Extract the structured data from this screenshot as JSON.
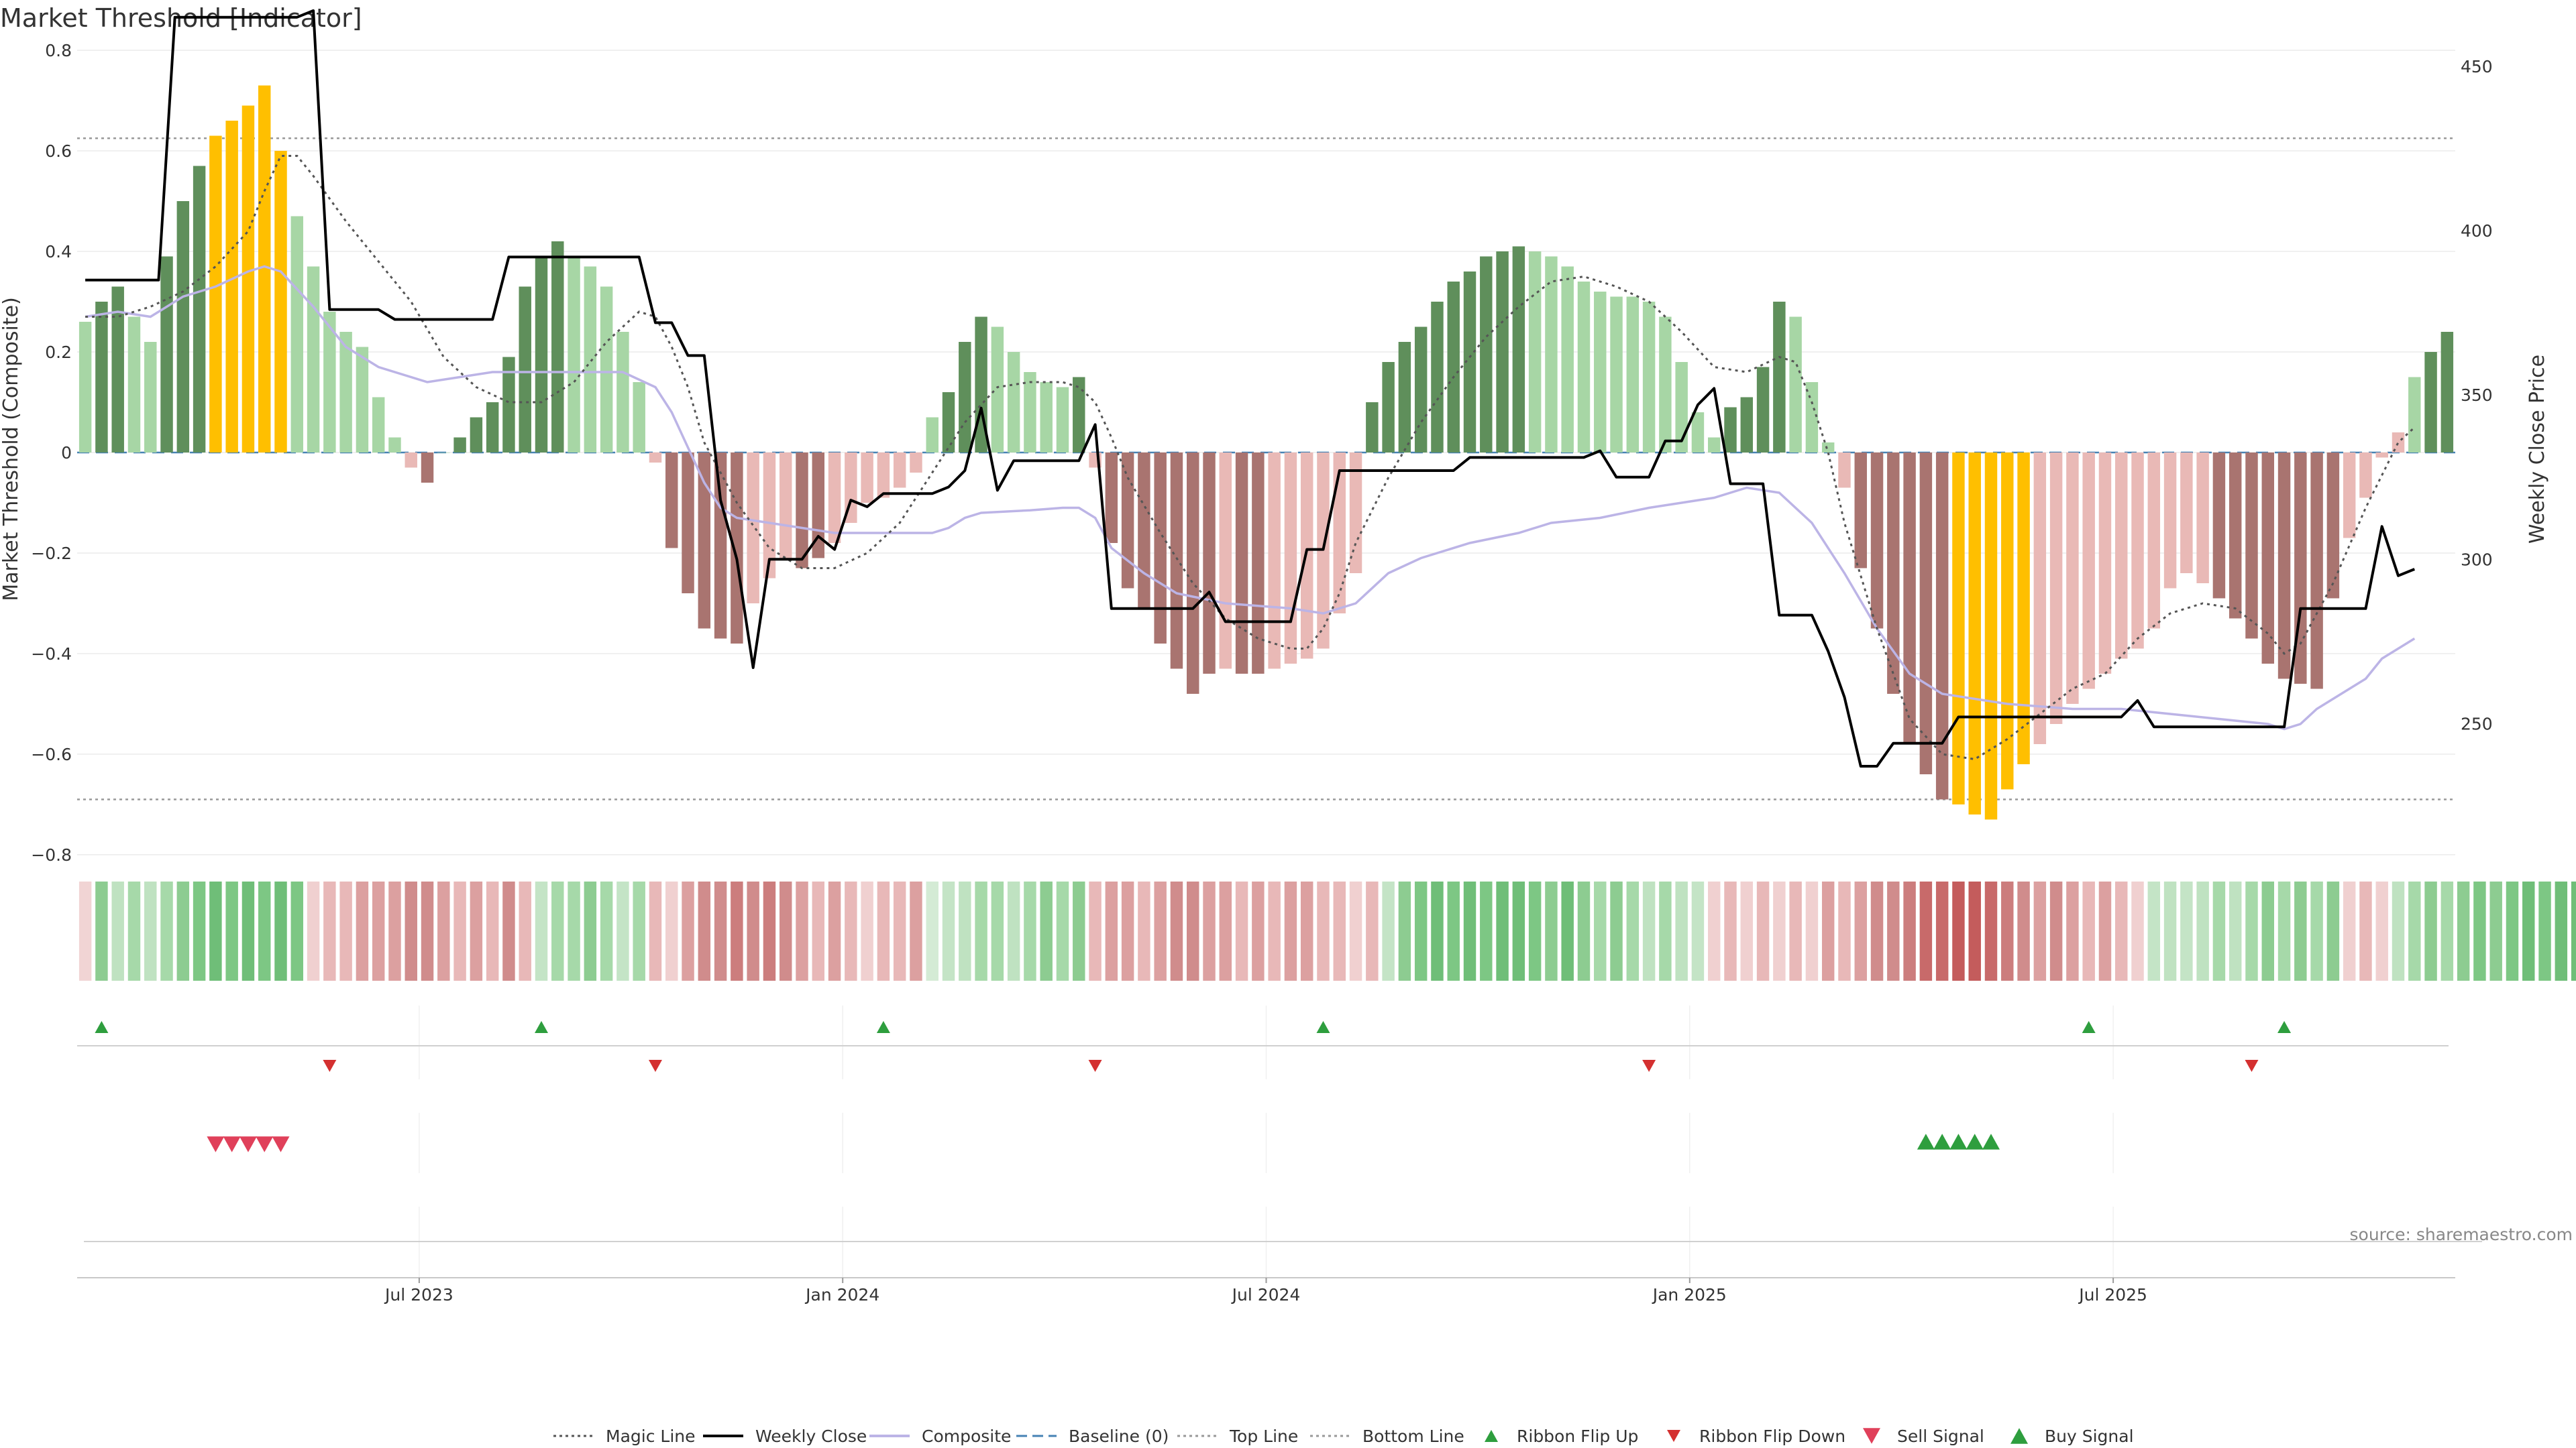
{
  "chart_data": {
    "type": "bar",
    "title": "Market Threshold [Indicator]",
    "ylabel": "Market Threshold (Composite)",
    "y2label": "Weekly Close Price",
    "source": "source: sharemaestro.com",
    "ylim": [
      -0.82,
      0.82
    ],
    "y2lim": [
      207,
      458
    ],
    "yticks": [
      "0.8",
      "0.6",
      "0.4",
      "0.2",
      "0",
      "−0.2",
      "−0.4",
      "−0.6",
      "−0.8"
    ],
    "yticks_values": [
      0.8,
      0.6,
      0.4,
      0.2,
      0,
      -0.2,
      -0.4,
      -0.6,
      -0.8
    ],
    "y2ticks": [
      "450",
      "400",
      "350",
      "300",
      "250"
    ],
    "y2ticks_values": [
      450,
      400,
      350,
      300,
      250
    ],
    "xticks": [
      {
        "label": "Jul 2023",
        "week": 21
      },
      {
        "label": "Jan 2024",
        "week": 47
      },
      {
        "label": "Jul 2024",
        "week": 73
      },
      {
        "label": "Jan 2025",
        "week": 99
      },
      {
        "label": "Jul 2025",
        "week": 125
      }
    ],
    "top_line": 0.625,
    "bottom_line": -0.69,
    "histogram": [
      0.26,
      0.3,
      0.33,
      0.27,
      0.22,
      0.39,
      0.5,
      0.57,
      0.63,
      0.66,
      0.69,
      0.73,
      0.6,
      0.47,
      0.37,
      0.28,
      0.24,
      0.21,
      0.11,
      0.03,
      -0.03,
      -0.06,
      0,
      0.03,
      0.07,
      0.1,
      0.19,
      0.33,
      0.39,
      0.42,
      0.39,
      0.37,
      0.33,
      0.24,
      0.14,
      -0.02,
      -0.19,
      -0.28,
      -0.35,
      -0.37,
      -0.38,
      -0.3,
      -0.25,
      -0.21,
      -0.23,
      -0.21,
      -0.18,
      -0.14,
      -0.1,
      -0.09,
      -0.07,
      -0.04,
      0.07,
      0.12,
      0.22,
      0.27,
      0.25,
      0.2,
      0.16,
      0.14,
      0.13,
      0.15,
      -0.03,
      -0.18,
      -0.27,
      -0.31,
      -0.38,
      -0.43,
      -0.48,
      -0.44,
      -0.43,
      -0.44,
      -0.44,
      -0.43,
      -0.42,
      -0.41,
      -0.39,
      -0.32,
      -0.24,
      0.1,
      0.18,
      0.22,
      0.25,
      0.3,
      0.34,
      0.36,
      0.39,
      0.4,
      0.41,
      0.4,
      0.39,
      0.37,
      0.34,
      0.32,
      0.31,
      0.31,
      0.3,
      0.27,
      0.18,
      0.08,
      0.03,
      0.09,
      0.11,
      0.17,
      0.3,
      0.27,
      0.14,
      0.02,
      -0.07,
      -0.23,
      -0.35,
      -0.48,
      -0.58,
      -0.64,
      -0.69,
      -0.7,
      -0.72,
      -0.73,
      -0.67,
      -0.62,
      -0.58,
      -0.54,
      -0.5,
      -0.47,
      -0.44,
      -0.41,
      -0.39,
      -0.35,
      -0.27,
      -0.24,
      -0.26,
      -0.29,
      -0.33,
      -0.37,
      -0.42,
      -0.45,
      -0.46,
      -0.47,
      -0.29,
      -0.17,
      -0.09,
      -0.01,
      0.04,
      0.15,
      0.2,
      0.24
    ],
    "hist_colors": [
      "#a7d6a5",
      "#5f8f5b",
      "#5f8f5b",
      "#a7d6a5",
      "#a7d6a5",
      "#5f8f5b",
      "#5f8f5b",
      "#5f8f5b",
      "#ffbf00",
      "#ffbf00",
      "#ffbf00",
      "#ffbf00",
      "#ffbf00",
      "#a7d6a5",
      "#a7d6a5",
      "#a7d6a5",
      "#a7d6a5",
      "#a7d6a5",
      "#a7d6a5",
      "#a7d6a5",
      "#e9b9b6",
      "#a97470",
      "#a7d6a5",
      "#5f8f5b",
      "#5f8f5b",
      "#5f8f5b",
      "#5f8f5b",
      "#5f8f5b",
      "#5f8f5b",
      "#5f8f5b",
      "#a7d6a5",
      "#a7d6a5",
      "#a7d6a5",
      "#a7d6a5",
      "#a7d6a5",
      "#e9b9b6",
      "#a97470",
      "#a97470",
      "#a97470",
      "#a97470",
      "#a97470",
      "#e9b9b6",
      "#e9b9b6",
      "#e9b9b6",
      "#a97470",
      "#a97470",
      "#e9b9b6",
      "#e9b9b6",
      "#e9b9b6",
      "#e9b9b6",
      "#e9b9b6",
      "#e9b9b6",
      "#a7d6a5",
      "#5f8f5b",
      "#5f8f5b",
      "#5f8f5b",
      "#a7d6a5",
      "#a7d6a5",
      "#a7d6a5",
      "#a7d6a5",
      "#a7d6a5",
      "#5f8f5b",
      "#e9b9b6",
      "#a97470",
      "#a97470",
      "#a97470",
      "#a97470",
      "#a97470",
      "#a97470",
      "#a97470",
      "#e9b9b6",
      "#a97470",
      "#a97470",
      "#e9b9b6",
      "#e9b9b6",
      "#e9b9b6",
      "#e9b9b6",
      "#e9b9b6",
      "#e9b9b6",
      "#5f8f5b",
      "#5f8f5b",
      "#5f8f5b",
      "#5f8f5b",
      "#5f8f5b",
      "#5f8f5b",
      "#5f8f5b",
      "#5f8f5b",
      "#5f8f5b",
      "#5f8f5b",
      "#a7d6a5",
      "#a7d6a5",
      "#a7d6a5",
      "#a7d6a5",
      "#a7d6a5",
      "#a7d6a5",
      "#a7d6a5",
      "#a7d6a5",
      "#a7d6a5",
      "#a7d6a5",
      "#a7d6a5",
      "#a7d6a5",
      "#5f8f5b",
      "#5f8f5b",
      "#5f8f5b",
      "#5f8f5b",
      "#a7d6a5",
      "#a7d6a5",
      "#a7d6a5",
      "#e9b9b6",
      "#a97470",
      "#a97470",
      "#a97470",
      "#a97470",
      "#a97470",
      "#a97470",
      "#ffbf00",
      "#ffbf00",
      "#ffbf00",
      "#ffbf00",
      "#ffbf00",
      "#e9b9b6",
      "#e9b9b6",
      "#e9b9b6",
      "#e9b9b6",
      "#e9b9b6",
      "#e9b9b6",
      "#e9b9b6",
      "#e9b9b6",
      "#e9b9b6",
      "#e9b9b6",
      "#e9b9b6",
      "#a97470",
      "#a97470",
      "#a97470",
      "#a97470",
      "#a97470",
      "#a97470",
      "#a97470",
      "#a97470",
      "#e9b9b6",
      "#e9b9b6",
      "#e9b9b6",
      "#e9b9b6",
      "#a7d6a5",
      "#5f8f5b",
      "#5f8f5b",
      "#5f8f5b"
    ],
    "ribbon_colors": [
      "#f1d4d4",
      "#8dcc91",
      "#bfe2c1",
      "#a6d9a9",
      "#bfe2c1",
      "#a6d9a9",
      "#8dcc91",
      "#7dc784",
      "#6fbe78",
      "#7dc784",
      "#6fbe78",
      "#7dc784",
      "#6fbe78",
      "#7dc784",
      "#f0d0d0",
      "#e8b8b8",
      "#e8b8b8",
      "#dca0a0",
      "#dca0a0",
      "#dca0a0",
      "#d08c8c",
      "#d08c8c",
      "#dca0a0",
      "#e8b8b8",
      "#dca0a0",
      "#e8b8b8",
      "#d08c8c",
      "#e8b8b8",
      "#c4e4c6",
      "#a6d9a9",
      "#a6d9a9",
      "#8dcc91",
      "#a6d9a9",
      "#c4e4c6",
      "#a6d9a9",
      "#e8b8b8",
      "#f0d0d0",
      "#dca0a0",
      "#d08c8c",
      "#d08c8c",
      "#cc7d7d",
      "#d08c8c",
      "#cc7d7d",
      "#d08c8c",
      "#dca0a0",
      "#e8b8b8",
      "#dca0a0",
      "#e8b8b8",
      "#f0d0d0",
      "#e8b8b8",
      "#e8b8b8",
      "#dca0a0",
      "#d4ebd5",
      "#c4e4c6",
      "#bfe2c1",
      "#a6d9a9",
      "#a6d9a9",
      "#bfe2c1",
      "#a6d9a9",
      "#8dcc91",
      "#a6d9a9",
      "#8dcc91",
      "#e8b8b8",
      "#dca0a0",
      "#dca0a0",
      "#e8b8b8",
      "#dca0a0",
      "#d08c8c",
      "#d08c8c",
      "#dca0a0",
      "#dca0a0",
      "#e8b8b8",
      "#dca0a0",
      "#e8b8b8",
      "#dca0a0",
      "#dca0a0",
      "#e8b8b8",
      "#e8b8b8",
      "#f0d0d0",
      "#e8b8b8",
      "#c4e4c6",
      "#8dcc91",
      "#7dc784",
      "#6fbe78",
      "#7dc784",
      "#6fbe78",
      "#7dc784",
      "#6fbe78",
      "#6fbe78",
      "#7dc784",
      "#8dcc91",
      "#6fbe78",
      "#8dcc91",
      "#a6d9a9",
      "#8dcc91",
      "#a6d9a9",
      "#bfe2c1",
      "#a6d9a9",
      "#bfe2c1",
      "#c4e4c6",
      "#f0d0d0",
      "#e8b8b8",
      "#f0d0d0",
      "#e8b8b8",
      "#f0d0d0",
      "#e8b8b8",
      "#f0d0d0",
      "#dca0a0",
      "#e8b8b8",
      "#dca0a0",
      "#d08c8c",
      "#d08c8c",
      "#cc7d7d",
      "#c86a6a",
      "#c86a6a",
      "#c45c5c",
      "#c45c5c",
      "#c86a6a",
      "#cc7d7d",
      "#d08c8c",
      "#dca0a0",
      "#d08c8c",
      "#dca0a0",
      "#e8b8b8",
      "#dca0a0",
      "#e8b8b8",
      "#f0d0d0",
      "#c4e4c6",
      "#bfe2c1",
      "#c4e4c6",
      "#bfe2c1",
      "#a6d9a9",
      "#bfe2c1",
      "#a6d9a9",
      "#8dcc91",
      "#a6d9a9",
      "#8dcc91",
      "#a6d9a9",
      "#8dcc91",
      "#f0d0d0",
      "#e8b8b8",
      "#f0d0d0",
      "#bfe2c1",
      "#a6d9a9",
      "#8dcc91",
      "#a6d9a9",
      "#8dcc91",
      "#7dc784",
      "#8dcc91",
      "#7dc784",
      "#6fbe78",
      "#7dc784",
      "#6fbe78",
      "#6fbe78"
    ],
    "weekly_close": [
      [
        0,
        385
      ],
      [
        4.5,
        385
      ],
      [
        5.5,
        465
      ],
      [
        13,
        465
      ],
      [
        14,
        467
      ],
      [
        15,
        376
      ],
      [
        18,
        376
      ],
      [
        19,
        373
      ],
      [
        25,
        373
      ],
      [
        26,
        392
      ],
      [
        32,
        392
      ],
      [
        34,
        392
      ],
      [
        35,
        372
      ],
      [
        36,
        372
      ],
      [
        37,
        362
      ],
      [
        38,
        362
      ],
      [
        39,
        318
      ],
      [
        40,
        300
      ],
      [
        41,
        267
      ],
      [
        42,
        300
      ],
      [
        44,
        300
      ],
      [
        45,
        307
      ],
      [
        46,
        303
      ],
      [
        47,
        318
      ],
      [
        48,
        316
      ],
      [
        49,
        320
      ],
      [
        50,
        320
      ],
      [
        51,
        320
      ],
      [
        52,
        320
      ],
      [
        53,
        322
      ],
      [
        54,
        327
      ],
      [
        55,
        346
      ],
      [
        56,
        321
      ],
      [
        57,
        330
      ],
      [
        59,
        330
      ],
      [
        60,
        330
      ],
      [
        61,
        330
      ],
      [
        62,
        341
      ],
      [
        63,
        285
      ],
      [
        68,
        285
      ],
      [
        69,
        290
      ],
      [
        70,
        281
      ],
      [
        74,
        281
      ],
      [
        75,
        303
      ],
      [
        76,
        303
      ],
      [
        77,
        327
      ],
      [
        84,
        327
      ],
      [
        85,
        331
      ],
      [
        92,
        331
      ],
      [
        93,
        333
      ],
      [
        94,
        325
      ],
      [
        96,
        325
      ],
      [
        97,
        336
      ],
      [
        98,
        336
      ],
      [
        99,
        347
      ],
      [
        100,
        352
      ],
      [
        101,
        323
      ],
      [
        103,
        323
      ],
      [
        104,
        283
      ],
      [
        106,
        283
      ],
      [
        107,
        272
      ],
      [
        108,
        258
      ],
      [
        109,
        237
      ],
      [
        110,
        237
      ],
      [
        111,
        244
      ],
      [
        114,
        244
      ],
      [
        115,
        252
      ],
      [
        125,
        252
      ],
      [
        126,
        257
      ],
      [
        127,
        249
      ],
      [
        135,
        249
      ],
      [
        136,
        285
      ],
      [
        140,
        285
      ],
      [
        141,
        310
      ],
      [
        142,
        295
      ],
      [
        143,
        297
      ]
    ],
    "composite": [
      [
        0,
        0.27
      ],
      [
        2,
        0.28
      ],
      [
        4,
        0.27
      ],
      [
        6,
        0.31
      ],
      [
        8,
        0.33
      ],
      [
        10,
        0.36
      ],
      [
        11,
        0.37
      ],
      [
        12,
        0.36
      ],
      [
        14,
        0.29
      ],
      [
        16,
        0.21
      ],
      [
        18,
        0.17
      ],
      [
        21,
        0.14
      ],
      [
        23,
        0.15
      ],
      [
        25,
        0.16
      ],
      [
        27,
        0.16
      ],
      [
        30,
        0.16
      ],
      [
        33,
        0.16
      ],
      [
        35,
        0.13
      ],
      [
        36,
        0.08
      ],
      [
        37,
        0.01
      ],
      [
        38,
        -0.06
      ],
      [
        39,
        -0.11
      ],
      [
        40,
        -0.13
      ],
      [
        42,
        -0.14
      ],
      [
        44,
        -0.15
      ],
      [
        46,
        -0.16
      ],
      [
        50,
        -0.16
      ],
      [
        52,
        -0.16
      ],
      [
        53,
        -0.15
      ],
      [
        54,
        -0.13
      ],
      [
        55,
        -0.12
      ],
      [
        58,
        -0.115
      ],
      [
        60,
        -0.11
      ],
      [
        61,
        -0.11
      ],
      [
        62,
        -0.13
      ],
      [
        63,
        -0.19
      ],
      [
        65,
        -0.24
      ],
      [
        67,
        -0.28
      ],
      [
        70,
        -0.3
      ],
      [
        74,
        -0.31
      ],
      [
        76,
        -0.32
      ],
      [
        78,
        -0.3
      ],
      [
        80,
        -0.24
      ],
      [
        82,
        -0.21
      ],
      [
        85,
        -0.18
      ],
      [
        88,
        -0.16
      ],
      [
        90,
        -0.14
      ],
      [
        93,
        -0.13
      ],
      [
        96,
        -0.11
      ],
      [
        98,
        -0.1
      ],
      [
        100,
        -0.09
      ],
      [
        102,
        -0.07
      ],
      [
        104,
        -0.08
      ],
      [
        106,
        -0.14
      ],
      [
        108,
        -0.24
      ],
      [
        110,
        -0.35
      ],
      [
        112,
        -0.44
      ],
      [
        114,
        -0.48
      ],
      [
        116,
        -0.49
      ],
      [
        118,
        -0.5
      ],
      [
        122,
        -0.51
      ],
      [
        125,
        -0.51
      ],
      [
        128,
        -0.52
      ],
      [
        131,
        -0.53
      ],
      [
        134,
        -0.54
      ],
      [
        135,
        -0.55
      ],
      [
        136,
        -0.54
      ],
      [
        137,
        -0.51
      ],
      [
        139,
        -0.47
      ],
      [
        140,
        -0.45
      ],
      [
        141,
        -0.41
      ],
      [
        142,
        -0.39
      ],
      [
        143,
        -0.37
      ]
    ],
    "magic_line": [
      [
        0,
        0.27
      ],
      [
        2,
        0.27
      ],
      [
        4,
        0.29
      ],
      [
        6,
        0.32
      ],
      [
        8,
        0.37
      ],
      [
        10,
        0.44
      ],
      [
        11,
        0.52
      ],
      [
        12,
        0.59
      ],
      [
        13,
        0.59
      ],
      [
        14,
        0.55
      ],
      [
        16,
        0.46
      ],
      [
        18,
        0.38
      ],
      [
        20,
        0.3
      ],
      [
        22,
        0.19
      ],
      [
        24,
        0.13
      ],
      [
        26,
        0.1
      ],
      [
        28,
        0.1
      ],
      [
        30,
        0.14
      ],
      [
        32,
        0.22
      ],
      [
        34,
        0.28
      ],
      [
        35,
        0.27
      ],
      [
        36,
        0.21
      ],
      [
        37,
        0.13
      ],
      [
        38,
        0.02
      ],
      [
        40,
        -0.1
      ],
      [
        42,
        -0.19
      ],
      [
        44,
        -0.23
      ],
      [
        46,
        -0.23
      ],
      [
        48,
        -0.2
      ],
      [
        50,
        -0.14
      ],
      [
        52,
        -0.04
      ],
      [
        54,
        0.06
      ],
      [
        56,
        0.13
      ],
      [
        58,
        0.14
      ],
      [
        60,
        0.14
      ],
      [
        61,
        0.13
      ],
      [
        62,
        0.1
      ],
      [
        63,
        0.03
      ],
      [
        64,
        -0.05
      ],
      [
        66,
        -0.16
      ],
      [
        68,
        -0.26
      ],
      [
        70,
        -0.33
      ],
      [
        72,
        -0.37
      ],
      [
        74,
        -0.39
      ],
      [
        75,
        -0.39
      ],
      [
        76,
        -0.35
      ],
      [
        77,
        -0.28
      ],
      [
        78,
        -0.18
      ],
      [
        80,
        -0.05
      ],
      [
        82,
        0.06
      ],
      [
        84,
        0.15
      ],
      [
        86,
        0.23
      ],
      [
        88,
        0.29
      ],
      [
        90,
        0.34
      ],
      [
        92,
        0.35
      ],
      [
        94,
        0.33
      ],
      [
        96,
        0.3
      ],
      [
        98,
        0.24
      ],
      [
        100,
        0.17
      ],
      [
        102,
        0.16
      ],
      [
        104,
        0.19
      ],
      [
        105,
        0.18
      ],
      [
        106,
        0.1
      ],
      [
        107,
        0.0
      ],
      [
        108,
        -0.14
      ],
      [
        110,
        -0.35
      ],
      [
        112,
        -0.53
      ],
      [
        114,
        -0.6
      ],
      [
        116,
        -0.61
      ],
      [
        118,
        -0.57
      ],
      [
        120,
        -0.52
      ],
      [
        122,
        -0.47
      ],
      [
        124,
        -0.44
      ],
      [
        126,
        -0.37
      ],
      [
        128,
        -0.32
      ],
      [
        130,
        -0.3
      ],
      [
        132,
        -0.31
      ],
      [
        134,
        -0.36
      ],
      [
        135,
        -0.4
      ],
      [
        136,
        -0.38
      ],
      [
        138,
        -0.26
      ],
      [
        140,
        -0.11
      ],
      [
        142,
        0.02
      ],
      [
        143,
        0.05
      ]
    ],
    "ribbon_flip_up": [
      1,
      28,
      49,
      76,
      123,
      135
    ],
    "ribbon_flip_down": [
      15,
      35,
      62,
      96,
      133
    ],
    "sell_signal": [
      8,
      9,
      10,
      11,
      12
    ],
    "buy_signal": [
      113,
      114,
      115,
      116,
      117
    ],
    "legend": [
      {
        "label": "Magic Line",
        "kind": "dotted",
        "color": "#555555"
      },
      {
        "label": "Weekly Close",
        "kind": "solid",
        "color": "#000000"
      },
      {
        "label": "Composite",
        "kind": "solid",
        "color": "#bcb4e6"
      },
      {
        "label": "Baseline (0)",
        "kind": "dashed",
        "color": "#4682b4"
      },
      {
        "label": "Top Line",
        "kind": "dotted",
        "color": "#999999"
      },
      {
        "label": "Bottom Line",
        "kind": "dotted",
        "color": "#999999"
      },
      {
        "label": "Ribbon Flip Up",
        "kind": "tri-up",
        "color": "#2e9e3e"
      },
      {
        "label": "Ribbon Flip Down",
        "kind": "tri-down",
        "color": "#d43030"
      },
      {
        "label": "Sell Signal",
        "kind": "tri-down-lg",
        "color": "#e0405a"
      },
      {
        "label": "Buy Signal",
        "kind": "tri-up-lg",
        "color": "#2e9e3e"
      }
    ]
  }
}
